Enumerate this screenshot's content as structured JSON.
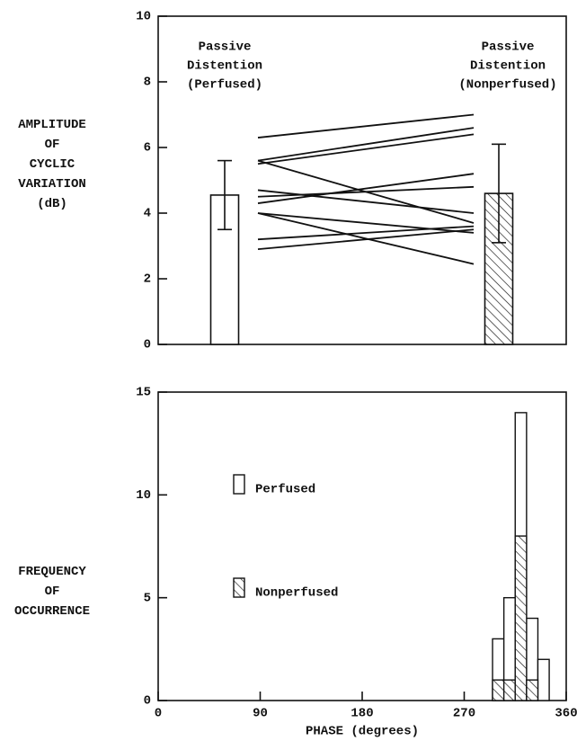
{
  "chart_data": [
    {
      "type": "bar",
      "y_label": [
        "AMPLITUDE",
        "OF",
        "CYCLIC",
        "VARIATION",
        "(dB)"
      ],
      "categories": [
        [
          "Passive",
          "Distention",
          "(Perfused)"
        ],
        [
          "Passive",
          "Distention",
          "(Nonperfused)"
        ]
      ],
      "values": [
        4.55,
        4.6
      ],
      "errors": [
        1.05,
        1.5
      ],
      "fills": [
        "white",
        "hatch"
      ],
      "pairs": [
        [
          6.3,
          7.0
        ],
        [
          5.6,
          6.6
        ],
        [
          5.5,
          6.4
        ],
        [
          5.6,
          3.7
        ],
        [
          4.7,
          4.0
        ],
        [
          4.5,
          4.8
        ],
        [
          4.3,
          5.2
        ],
        [
          4.0,
          3.4
        ],
        [
          4.0,
          2.45
        ],
        [
          3.2,
          3.6
        ],
        [
          2.9,
          3.5
        ]
      ],
      "ylim": [
        0,
        10
      ],
      "yticks": [
        0,
        2,
        4,
        6,
        8,
        10
      ]
    },
    {
      "type": "histogram",
      "y_label": [
        "FREQUENCY",
        "OF",
        "OCCURRENCE"
      ],
      "x_label": "PHASE (degrees)",
      "bins": [
        295,
        305,
        315,
        325,
        335,
        345
      ],
      "series": [
        {
          "name": "Perfused",
          "fill": "white",
          "values": [
            3,
            5,
            14,
            4,
            2
          ]
        },
        {
          "name": "Nonperfused",
          "fill": "hatch",
          "values": [
            1,
            1,
            8,
            1,
            0
          ]
        }
      ],
      "xlim": [
        0,
        360
      ],
      "xticks": [
        0,
        90,
        180,
        270,
        360
      ],
      "ylim": [
        0,
        15
      ],
      "yticks": [
        0,
        5,
        10,
        15
      ]
    }
  ]
}
